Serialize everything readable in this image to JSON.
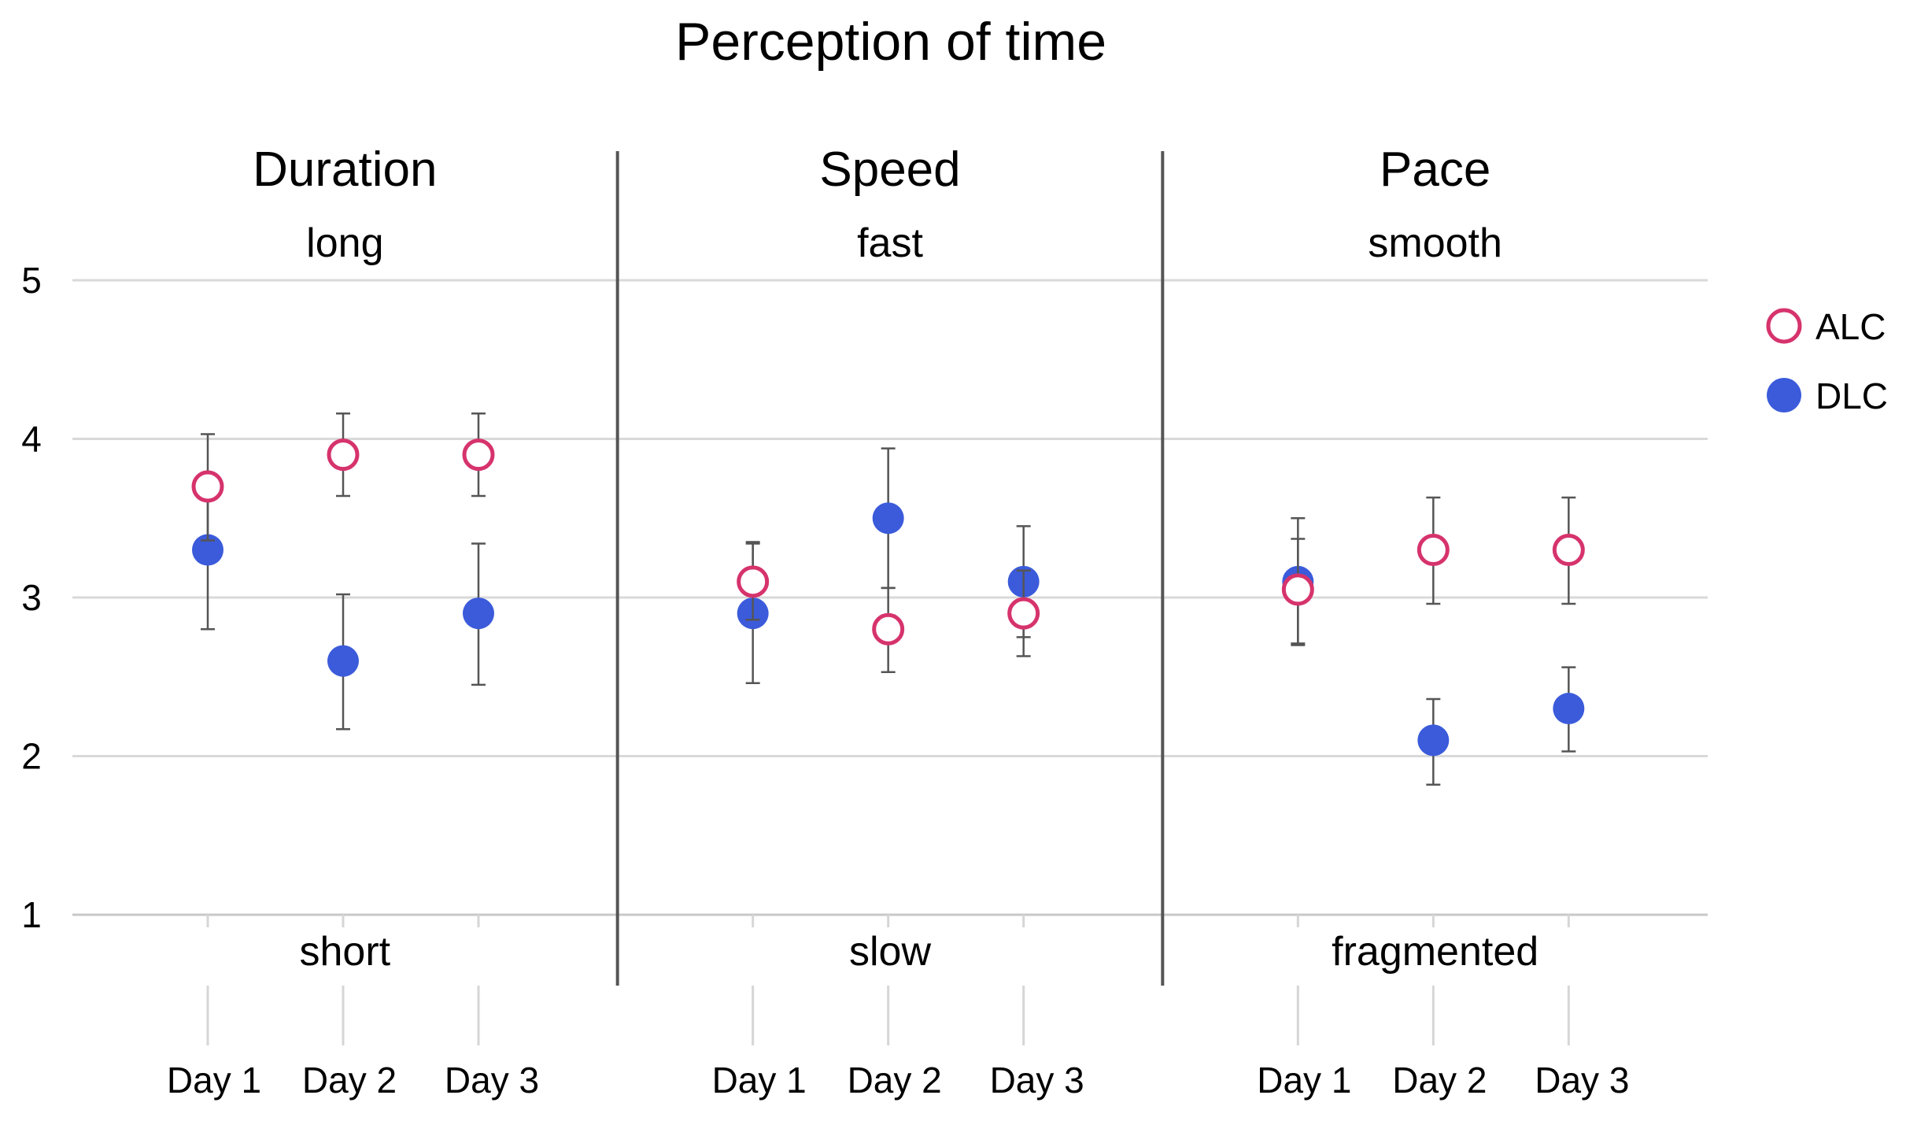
{
  "chart_data": {
    "type": "scatter",
    "title": "Perception of time",
    "y_ticks": [
      "1",
      "2",
      "3",
      "4",
      "5"
    ],
    "ylim": [
      1,
      5
    ],
    "grid": true,
    "legend_position": "top-right",
    "categories": [
      "Day 1",
      "Day 2",
      "Day 3"
    ],
    "series_styles": [
      {
        "name": "ALC",
        "marker": "open-circle",
        "color": "#d6336c"
      },
      {
        "name": "DLC",
        "marker": "filled-circle",
        "color": "#3b5bdb"
      }
    ],
    "panels": [
      {
        "title": "Duration",
        "top_label": "long",
        "bottom_label": "short",
        "series": [
          {
            "name": "ALC",
            "values": [
              3.7,
              3.9,
              3.9
            ],
            "err_low": [
              3.36,
              3.64,
              3.64
            ],
            "err_high": [
              4.03,
              4.16,
              4.16
            ]
          },
          {
            "name": "DLC",
            "values": [
              3.3,
              2.6,
              2.9
            ],
            "err_low": [
              2.8,
              2.17,
              2.45
            ],
            "err_high": [
              3.63,
              3.02,
              3.34
            ]
          }
        ]
      },
      {
        "title": "Speed",
        "top_label": "fast",
        "bottom_label": "slow",
        "series": [
          {
            "name": "ALC",
            "values": [
              3.1,
              2.8,
              2.9
            ],
            "err_low": [
              2.86,
              2.53,
              2.63
            ],
            "err_high": [
              3.34,
              3.06,
              3.17
            ]
          },
          {
            "name": "DLC",
            "values": [
              2.9,
              3.5,
              3.1
            ],
            "err_low": [
              2.46,
              3.06,
              2.75
            ],
            "err_high": [
              3.35,
              3.94,
              3.45
            ]
          }
        ]
      },
      {
        "title": "Pace",
        "top_label": "smooth",
        "bottom_label": "fragmented",
        "series": [
          {
            "name": "ALC",
            "values": [
              3.05,
              3.3,
              3.3
            ],
            "err_low": [
              2.71,
              2.96,
              2.96
            ],
            "err_high": [
              3.37,
              3.63,
              3.63
            ]
          },
          {
            "name": "DLC",
            "values": [
              3.1,
              2.1,
              2.3
            ],
            "err_low": [
              2.7,
              1.82,
              2.03
            ],
            "err_high": [
              3.5,
              2.36,
              2.56
            ]
          }
        ]
      }
    ]
  }
}
